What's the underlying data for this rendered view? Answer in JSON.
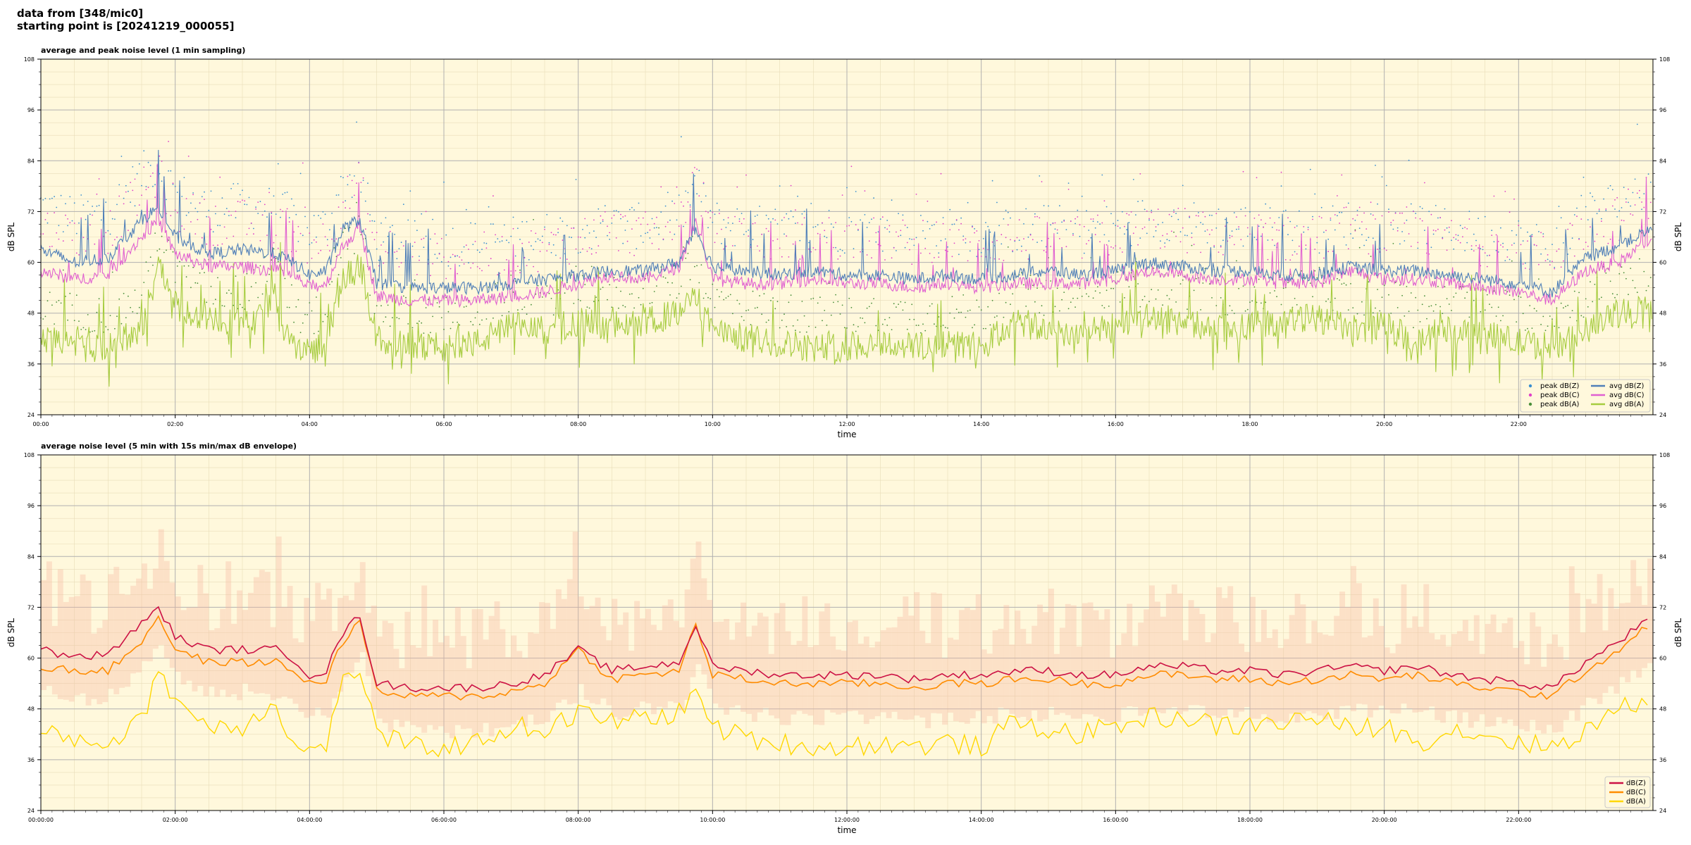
{
  "header": {
    "line1": "data from [348/mic0]",
    "line2": "starting point is [20241219_000055]"
  },
  "chart_data": [
    {
      "type": "line",
      "title": "average and peak noise level (1 min sampling)",
      "xlabel": "time",
      "ylabel": "dB SPL",
      "ylim": [
        24,
        108
      ],
      "xlim_hours": [
        0,
        24
      ],
      "yticks": [
        24,
        36,
        48,
        60,
        72,
        84,
        96,
        108
      ],
      "xticks": [
        {
          "h": 0,
          "label": "00:00"
        },
        {
          "h": 2,
          "label": "02:00"
        },
        {
          "h": 4,
          "label": "04:00"
        },
        {
          "h": 6,
          "label": "06:00"
        },
        {
          "h": 8,
          "label": "08:00"
        },
        {
          "h": 10,
          "label": "10:00"
        },
        {
          "h": 12,
          "label": "12:00"
        },
        {
          "h": 14,
          "label": "14:00"
        },
        {
          "h": 16,
          "label": "16:00"
        },
        {
          "h": 18,
          "label": "18:00"
        },
        {
          "h": 20,
          "label": "20:00"
        },
        {
          "h": 22,
          "label": "22:00"
        }
      ],
      "grid": true,
      "background": "#fff8dc",
      "legend_position": "bottom-right",
      "x_hours": [
        0,
        0.5,
        1,
        1.5,
        1.75,
        2,
        2.5,
        3,
        3.5,
        3.75,
        4,
        4.25,
        4.5,
        4.75,
        5,
        5.5,
        6,
        6.5,
        7,
        7.5,
        8,
        8.5,
        9,
        9.5,
        9.75,
        10,
        10.5,
        11,
        11.5,
        12,
        12.5,
        13,
        13.5,
        14,
        14.5,
        15,
        15.5,
        16,
        16.5,
        17,
        17.5,
        18,
        18.5,
        19,
        19.5,
        20,
        20.5,
        21,
        21.5,
        22,
        22.5,
        23,
        23.5,
        24
      ],
      "series": [
        {
          "name": "avg dB(Z)",
          "kind": "line",
          "color": "#4f7fb8",
          "values": [
            63,
            60,
            61,
            70,
            73,
            66,
            62,
            63,
            62,
            60,
            57,
            58,
            68,
            70,
            55,
            54,
            54,
            54,
            55,
            56,
            57,
            58,
            58,
            60,
            68,
            59,
            58,
            57,
            58,
            57,
            57,
            56,
            57,
            56,
            57,
            58,
            57,
            58,
            60,
            59,
            58,
            58,
            57,
            57,
            59,
            58,
            58,
            57,
            56,
            55,
            53,
            61,
            64,
            68
          ]
        },
        {
          "name": "avg dB(C)",
          "kind": "line",
          "color": "#e060d0",
          "values": [
            58,
            56,
            57,
            66,
            70,
            62,
            59,
            59,
            58,
            57,
            54,
            55,
            64,
            68,
            52,
            51,
            51,
            51,
            52,
            53,
            55,
            57,
            56,
            59,
            70,
            56,
            55,
            55,
            56,
            55,
            55,
            54,
            55,
            54,
            55,
            55,
            55,
            56,
            58,
            57,
            56,
            56,
            55,
            55,
            58,
            56,
            56,
            55,
            54,
            53,
            51,
            58,
            60,
            66
          ]
        },
        {
          "name": "avg dB(A)",
          "kind": "line",
          "color": "#a6cc3f",
          "values": [
            42,
            41,
            40,
            44,
            60,
            50,
            46,
            45,
            52,
            40,
            39,
            41,
            56,
            60,
            42,
            40,
            40,
            41,
            45,
            44,
            46,
            45,
            46,
            48,
            52,
            44,
            42,
            41,
            40,
            40,
            41,
            40,
            41,
            40,
            46,
            44,
            43,
            45,
            47,
            46,
            44,
            45,
            46,
            47,
            44,
            45,
            41,
            44,
            43,
            41,
            40,
            44,
            48,
            50
          ]
        },
        {
          "name": "peak dB(Z)",
          "kind": "dots",
          "color": "#3a8fd0"
        },
        {
          "name": "peak dB(C)",
          "kind": "dots",
          "color": "#e040c8"
        },
        {
          "name": "peak dB(A)",
          "kind": "dots",
          "color": "#4a8f3a"
        }
      ]
    },
    {
      "type": "line",
      "title": "average noise level (5 min with 15s min/max dB envelope)",
      "xlabel": "time",
      "ylabel": "dB SPL",
      "ylim": [
        24,
        108
      ],
      "xlim_hours": [
        0,
        24
      ],
      "yticks": [
        24,
        36,
        48,
        60,
        72,
        84,
        96,
        108
      ],
      "xticks": [
        {
          "h": 0,
          "label": "00:00:00"
        },
        {
          "h": 2,
          "label": "02:00:00"
        },
        {
          "h": 4,
          "label": "04:00:00"
        },
        {
          "h": 6,
          "label": "06:00:00"
        },
        {
          "h": 8,
          "label": "08:00:00"
        },
        {
          "h": 10,
          "label": "10:00:00"
        },
        {
          "h": 12,
          "label": "12:00:00"
        },
        {
          "h": 14,
          "label": "14:00:00"
        },
        {
          "h": 16,
          "label": "16:00:00"
        },
        {
          "h": 18,
          "label": "18:00:00"
        },
        {
          "h": 20,
          "label": "20:00:00"
        },
        {
          "h": 22,
          "label": "22:00:00"
        }
      ],
      "grid": true,
      "background": "#fff8dc",
      "legend_position": "bottom-right",
      "x_hours": [
        0,
        0.5,
        1,
        1.5,
        1.75,
        2,
        2.5,
        3,
        3.5,
        3.75,
        4,
        4.25,
        4.5,
        4.75,
        5,
        5.5,
        6,
        6.5,
        7,
        7.5,
        8,
        8.5,
        9,
        9.5,
        9.75,
        10,
        10.5,
        11,
        11.5,
        12,
        12.5,
        13,
        13.5,
        14,
        14.5,
        15,
        15.5,
        16,
        16.5,
        17,
        17.5,
        18,
        18.5,
        19,
        19.5,
        20,
        20.5,
        21,
        21.5,
        22,
        22.5,
        23,
        23.5,
        24
      ],
      "series": [
        {
          "name": "dB(Z)",
          "color": "#cc1144",
          "values": [
            62,
            60,
            61,
            68,
            72,
            65,
            62,
            62,
            62,
            60,
            56,
            57,
            66,
            70,
            54,
            53,
            53,
            53,
            54,
            56,
            62,
            57,
            58,
            59,
            68,
            58,
            57,
            56,
            56,
            56,
            56,
            55,
            56,
            56,
            57,
            57,
            56,
            56,
            58,
            58,
            57,
            57,
            56,
            57,
            58,
            57,
            58,
            56,
            55,
            54,
            53,
            59,
            64,
            70
          ]
        },
        {
          "name": "dB(C)",
          "color": "#ff8c00",
          "values": [
            58,
            57,
            57,
            64,
            70,
            62,
            59,
            59,
            59,
            57,
            54,
            55,
            64,
            69,
            52,
            51,
            51,
            51,
            52,
            54,
            62,
            55,
            56,
            57,
            68,
            56,
            55,
            54,
            54,
            54,
            54,
            53,
            54,
            54,
            55,
            55,
            54,
            54,
            56,
            56,
            55,
            55,
            54,
            55,
            56,
            55,
            56,
            54,
            53,
            52,
            51,
            57,
            62,
            69
          ]
        },
        {
          "name": "dB(A)",
          "color": "#ffd700",
          "values": [
            42,
            41,
            40,
            45,
            58,
            50,
            44,
            44,
            50,
            39,
            38,
            40,
            54,
            58,
            42,
            39,
            39,
            40,
            44,
            43,
            47,
            45,
            46,
            47,
            52,
            44,
            41,
            40,
            39,
            39,
            40,
            39,
            40,
            39,
            45,
            43,
            42,
            44,
            46,
            46,
            44,
            44,
            45,
            46,
            43,
            44,
            40,
            43,
            42,
            40,
            39,
            43,
            48,
            50
          ]
        }
      ]
    }
  ]
}
